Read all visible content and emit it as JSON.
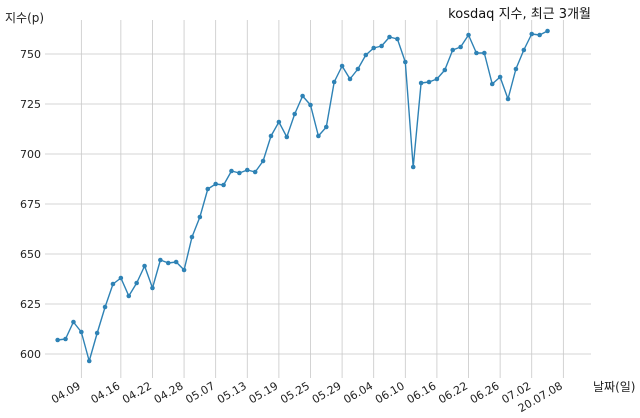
{
  "chart_data": {
    "type": "line",
    "title": "kosdaq 지수, 최근 3개월",
    "xlabel": "날짜(일)",
    "ylabel": "지수(p)",
    "ylim": [
      588,
      767
    ],
    "yticks": [
      600,
      625,
      650,
      675,
      700,
      725,
      750
    ],
    "grid": true,
    "color": "#2e82b5",
    "x_tick_labels": [
      "04.09",
      "04.16",
      "04.22",
      "04.28",
      "05.07",
      "05.13",
      "05.19",
      "05.25",
      "05.29",
      "06.04",
      "06.10",
      "06.16",
      "06.22",
      "06.26",
      "07.02",
      "20.07.08"
    ],
    "x_tick_index": [
      3,
      8,
      12,
      16,
      20,
      24,
      28,
      32,
      36,
      40,
      44,
      48,
      52,
      56,
      60,
      64
    ],
    "x_index_range": [
      -1.6,
      67.5
    ],
    "series": [
      {
        "values": [
          607,
          607.5,
          616,
          611,
          596.5,
          610.5,
          623.5,
          635,
          638,
          629,
          635.5,
          644,
          633,
          647,
          645.5,
          646,
          642,
          658.5,
          668.5,
          682.5,
          685,
          684.5,
          691.5,
          690.5,
          692,
          691,
          696.5,
          709,
          716,
          708.5,
          720,
          729,
          724.5,
          709,
          713.5,
          736,
          744,
          737.5,
          742.5,
          749.5,
          753,
          754,
          758.5,
          757.5,
          746,
          693.5,
          735.5,
          736,
          737.5,
          742,
          752,
          753.5,
          759.5,
          750.5,
          750.5,
          735,
          738.5,
          727.5,
          742.5,
          752,
          760,
          759.5,
          761.5
        ]
      }
    ]
  }
}
